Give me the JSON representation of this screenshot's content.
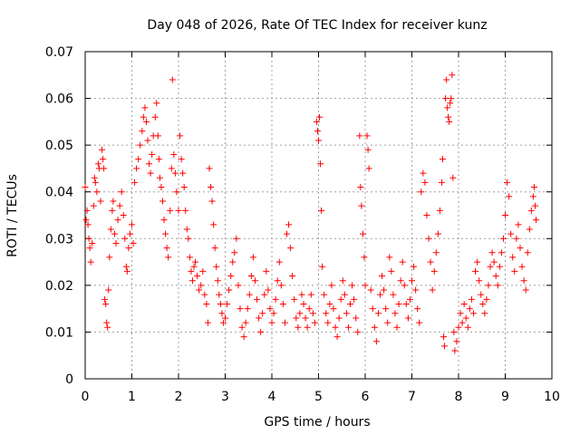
{
  "chart_data": {
    "type": "scatter",
    "title": "Day 048 of 2026, Rate Of TEC Index for receiver kunz",
    "xlabel": "GPS time / hours",
    "ylabel": "ROTI / TECUs",
    "xlim": [
      0,
      10
    ],
    "ylim": [
      0,
      0.07
    ],
    "x_ticks": [
      "0",
      "1",
      "2",
      "3",
      "4",
      "5",
      "6",
      "7",
      "8",
      "9",
      "10"
    ],
    "y_ticks": [
      "0",
      "0.01",
      "0.02",
      "0.03",
      "0.04",
      "0.05",
      "0.06",
      "0.07"
    ],
    "grid": true,
    "legend": "none",
    "marker": "plus",
    "color": "#ff0000",
    "series": [
      {
        "points": [
          [
            0.0,
            0.041
          ],
          [
            0.02,
            0.034
          ],
          [
            0.04,
            0.036
          ],
          [
            0.06,
            0.033
          ],
          [
            0.08,
            0.03
          ],
          [
            0.1,
            0.028
          ],
          [
            0.12,
            0.025
          ],
          [
            0.15,
            0.029
          ],
          [
            0.18,
            0.037
          ],
          [
            0.2,
            0.043
          ],
          [
            0.22,
            0.042
          ],
          [
            0.25,
            0.04
          ],
          [
            0.28,
            0.046
          ],
          [
            0.3,
            0.045
          ],
          [
            0.33,
            0.038
          ],
          [
            0.36,
            0.049
          ],
          [
            0.38,
            0.047
          ],
          [
            0.4,
            0.045
          ],
          [
            0.42,
            0.017
          ],
          [
            0.44,
            0.016
          ],
          [
            0.46,
            0.012
          ],
          [
            0.48,
            0.011
          ],
          [
            0.5,
            0.019
          ],
          [
            0.52,
            0.026
          ],
          [
            0.55,
            0.032
          ],
          [
            0.58,
            0.036
          ],
          [
            0.6,
            0.038
          ],
          [
            0.63,
            0.031
          ],
          [
            0.66,
            0.029
          ],
          [
            0.7,
            0.034
          ],
          [
            0.74,
            0.037
          ],
          [
            0.78,
            0.04
          ],
          [
            0.82,
            0.035
          ],
          [
            0.85,
            0.03
          ],
          [
            0.88,
            0.024
          ],
          [
            0.9,
            0.023
          ],
          [
            0.93,
            0.028
          ],
          [
            0.96,
            0.031
          ],
          [
            1.0,
            0.033
          ],
          [
            1.03,
            0.029
          ],
          [
            1.06,
            0.042
          ],
          [
            1.1,
            0.045
          ],
          [
            1.14,
            0.047
          ],
          [
            1.18,
            0.05
          ],
          [
            1.22,
            0.053
          ],
          [
            1.25,
            0.056
          ],
          [
            1.28,
            0.058
          ],
          [
            1.31,
            0.055
          ],
          [
            1.34,
            0.051
          ],
          [
            1.37,
            0.046
          ],
          [
            1.4,
            0.044
          ],
          [
            1.43,
            0.048
          ],
          [
            1.46,
            0.052
          ],
          [
            1.5,
            0.056
          ],
          [
            1.53,
            0.059
          ],
          [
            1.56,
            0.052
          ],
          [
            1.58,
            0.047
          ],
          [
            1.6,
            0.043
          ],
          [
            1.63,
            0.041
          ],
          [
            1.66,
            0.038
          ],
          [
            1.69,
            0.034
          ],
          [
            1.72,
            0.031
          ],
          [
            1.75,
            0.028
          ],
          [
            1.78,
            0.026
          ],
          [
            1.82,
            0.036
          ],
          [
            1.85,
            0.045
          ],
          [
            1.87,
            0.064
          ],
          [
            1.9,
            0.048
          ],
          [
            1.93,
            0.044
          ],
          [
            1.96,
            0.04
          ],
          [
            2.0,
            0.036
          ],
          [
            2.03,
            0.052
          ],
          [
            2.06,
            0.047
          ],
          [
            2.09,
            0.044
          ],
          [
            2.12,
            0.041
          ],
          [
            2.15,
            0.036
          ],
          [
            2.18,
            0.032
          ],
          [
            2.21,
            0.03
          ],
          [
            2.24,
            0.026
          ],
          [
            2.27,
            0.023
          ],
          [
            2.3,
            0.021
          ],
          [
            2.33,
            0.024
          ],
          [
            2.36,
            0.025
          ],
          [
            2.4,
            0.022
          ],
          [
            2.44,
            0.019
          ],
          [
            2.48,
            0.02
          ],
          [
            2.52,
            0.023
          ],
          [
            2.56,
            0.018
          ],
          [
            2.6,
            0.016
          ],
          [
            2.63,
            0.012
          ],
          [
            2.66,
            0.045
          ],
          [
            2.69,
            0.041
          ],
          [
            2.72,
            0.038
          ],
          [
            2.75,
            0.033
          ],
          [
            2.78,
            0.028
          ],
          [
            2.81,
            0.024
          ],
          [
            2.84,
            0.021
          ],
          [
            2.87,
            0.018
          ],
          [
            2.9,
            0.016
          ],
          [
            2.93,
            0.014
          ],
          [
            2.96,
            0.012
          ],
          [
            3.0,
            0.013
          ],
          [
            3.04,
            0.016
          ],
          [
            3.08,
            0.019
          ],
          [
            3.12,
            0.022
          ],
          [
            3.16,
            0.025
          ],
          [
            3.2,
            0.027
          ],
          [
            3.24,
            0.03
          ],
          [
            3.28,
            0.02
          ],
          [
            3.32,
            0.015
          ],
          [
            3.36,
            0.011
          ],
          [
            3.4,
            0.009
          ],
          [
            3.44,
            0.012
          ],
          [
            3.48,
            0.015
          ],
          [
            3.52,
            0.018
          ],
          [
            3.56,
            0.022
          ],
          [
            3.6,
            0.026
          ],
          [
            3.64,
            0.021
          ],
          [
            3.68,
            0.017
          ],
          [
            3.72,
            0.013
          ],
          [
            3.76,
            0.01
          ],
          [
            3.8,
            0.014
          ],
          [
            3.84,
            0.018
          ],
          [
            3.88,
            0.023
          ],
          [
            3.92,
            0.019
          ],
          [
            3.96,
            0.015
          ],
          [
            4.0,
            0.012
          ],
          [
            4.04,
            0.014
          ],
          [
            4.08,
            0.017
          ],
          [
            4.12,
            0.021
          ],
          [
            4.16,
            0.025
          ],
          [
            4.2,
            0.02
          ],
          [
            4.24,
            0.016
          ],
          [
            4.28,
            0.012
          ],
          [
            4.32,
            0.031
          ],
          [
            4.36,
            0.033
          ],
          [
            4.4,
            0.028
          ],
          [
            4.44,
            0.022
          ],
          [
            4.48,
            0.017
          ],
          [
            4.52,
            0.013
          ],
          [
            4.56,
            0.011
          ],
          [
            4.6,
            0.014
          ],
          [
            4.64,
            0.018
          ],
          [
            4.68,
            0.016
          ],
          [
            4.72,
            0.013
          ],
          [
            4.76,
            0.011
          ],
          [
            4.8,
            0.015
          ],
          [
            4.84,
            0.018
          ],
          [
            4.88,
            0.014
          ],
          [
            4.92,
            0.012
          ],
          [
            4.96,
            0.055
          ],
          [
            4.98,
            0.053
          ],
          [
            5.0,
            0.051
          ],
          [
            5.02,
            0.056
          ],
          [
            5.04,
            0.046
          ],
          [
            5.06,
            0.036
          ],
          [
            5.08,
            0.024
          ],
          [
            5.12,
            0.018
          ],
          [
            5.16,
            0.014
          ],
          [
            5.2,
            0.012
          ],
          [
            5.24,
            0.016
          ],
          [
            5.28,
            0.02
          ],
          [
            5.32,
            0.015
          ],
          [
            5.36,
            0.011
          ],
          [
            5.4,
            0.009
          ],
          [
            5.44,
            0.013
          ],
          [
            5.48,
            0.017
          ],
          [
            5.52,
            0.021
          ],
          [
            5.56,
            0.018
          ],
          [
            5.6,
            0.014
          ],
          [
            5.64,
            0.011
          ],
          [
            5.68,
            0.016
          ],
          [
            5.72,
            0.02
          ],
          [
            5.76,
            0.017
          ],
          [
            5.8,
            0.013
          ],
          [
            5.84,
            0.01
          ],
          [
            5.88,
            0.052
          ],
          [
            5.9,
            0.041
          ],
          [
            5.92,
            0.037
          ],
          [
            5.95,
            0.031
          ],
          [
            5.98,
            0.026
          ],
          [
            6.0,
            0.02
          ],
          [
            6.04,
            0.052
          ],
          [
            6.06,
            0.049
          ],
          [
            6.08,
            0.045
          ],
          [
            6.12,
            0.019
          ],
          [
            6.16,
            0.015
          ],
          [
            6.2,
            0.011
          ],
          [
            6.24,
            0.008
          ],
          [
            6.28,
            0.014
          ],
          [
            6.32,
            0.018
          ],
          [
            6.36,
            0.022
          ],
          [
            6.4,
            0.019
          ],
          [
            6.44,
            0.015
          ],
          [
            6.48,
            0.012
          ],
          [
            6.52,
            0.026
          ],
          [
            6.56,
            0.023
          ],
          [
            6.6,
            0.018
          ],
          [
            6.64,
            0.014
          ],
          [
            6.68,
            0.011
          ],
          [
            6.72,
            0.016
          ],
          [
            6.76,
            0.021
          ],
          [
            6.8,
            0.025
          ],
          [
            6.84,
            0.02
          ],
          [
            6.88,
            0.016
          ],
          [
            6.92,
            0.013
          ],
          [
            6.96,
            0.017
          ],
          [
            7.0,
            0.021
          ],
          [
            7.04,
            0.024
          ],
          [
            7.08,
            0.019
          ],
          [
            7.12,
            0.015
          ],
          [
            7.16,
            0.012
          ],
          [
            7.2,
            0.04
          ],
          [
            7.24,
            0.044
          ],
          [
            7.28,
            0.042
          ],
          [
            7.32,
            0.035
          ],
          [
            7.36,
            0.03
          ],
          [
            7.4,
            0.025
          ],
          [
            7.44,
            0.019
          ],
          [
            7.48,
            0.023
          ],
          [
            7.52,
            0.027
          ],
          [
            7.56,
            0.031
          ],
          [
            7.6,
            0.036
          ],
          [
            7.64,
            0.042
          ],
          [
            7.66,
            0.047
          ],
          [
            7.68,
            0.009
          ],
          [
            7.7,
            0.007
          ],
          [
            7.72,
            0.06
          ],
          [
            7.74,
            0.064
          ],
          [
            7.76,
            0.058
          ],
          [
            7.78,
            0.056
          ],
          [
            7.8,
            0.055
          ],
          [
            7.82,
            0.059
          ],
          [
            7.84,
            0.06
          ],
          [
            7.86,
            0.065
          ],
          [
            7.88,
            0.043
          ],
          [
            7.9,
            0.01
          ],
          [
            7.92,
            0.006
          ],
          [
            7.96,
            0.008
          ],
          [
            8.0,
            0.011
          ],
          [
            8.04,
            0.014
          ],
          [
            8.08,
            0.012
          ],
          [
            8.12,
            0.016
          ],
          [
            8.16,
            0.013
          ],
          [
            8.2,
            0.011
          ],
          [
            8.24,
            0.015
          ],
          [
            8.28,
            0.017
          ],
          [
            8.32,
            0.014
          ],
          [
            8.36,
            0.023
          ],
          [
            8.4,
            0.025
          ],
          [
            8.44,
            0.021
          ],
          [
            8.48,
            0.018
          ],
          [
            8.52,
            0.016
          ],
          [
            8.56,
            0.014
          ],
          [
            8.6,
            0.017
          ],
          [
            8.64,
            0.02
          ],
          [
            8.68,
            0.024
          ],
          [
            8.72,
            0.027
          ],
          [
            8.76,
            0.025
          ],
          [
            8.8,
            0.022
          ],
          [
            8.84,
            0.02
          ],
          [
            8.88,
            0.024
          ],
          [
            8.92,
            0.027
          ],
          [
            8.96,
            0.03
          ],
          [
            9.0,
            0.035
          ],
          [
            9.04,
            0.042
          ],
          [
            9.08,
            0.039
          ],
          [
            9.12,
            0.031
          ],
          [
            9.16,
            0.026
          ],
          [
            9.2,
            0.023
          ],
          [
            9.24,
            0.03
          ],
          [
            9.28,
            0.033
          ],
          [
            9.32,
            0.028
          ],
          [
            9.36,
            0.024
          ],
          [
            9.4,
            0.021
          ],
          [
            9.44,
            0.019
          ],
          [
            9.48,
            0.027
          ],
          [
            9.52,
            0.032
          ],
          [
            9.56,
            0.036
          ],
          [
            9.6,
            0.039
          ],
          [
            9.62,
            0.041
          ],
          [
            9.64,
            0.037
          ],
          [
            9.66,
            0.034
          ]
        ]
      }
    ]
  }
}
